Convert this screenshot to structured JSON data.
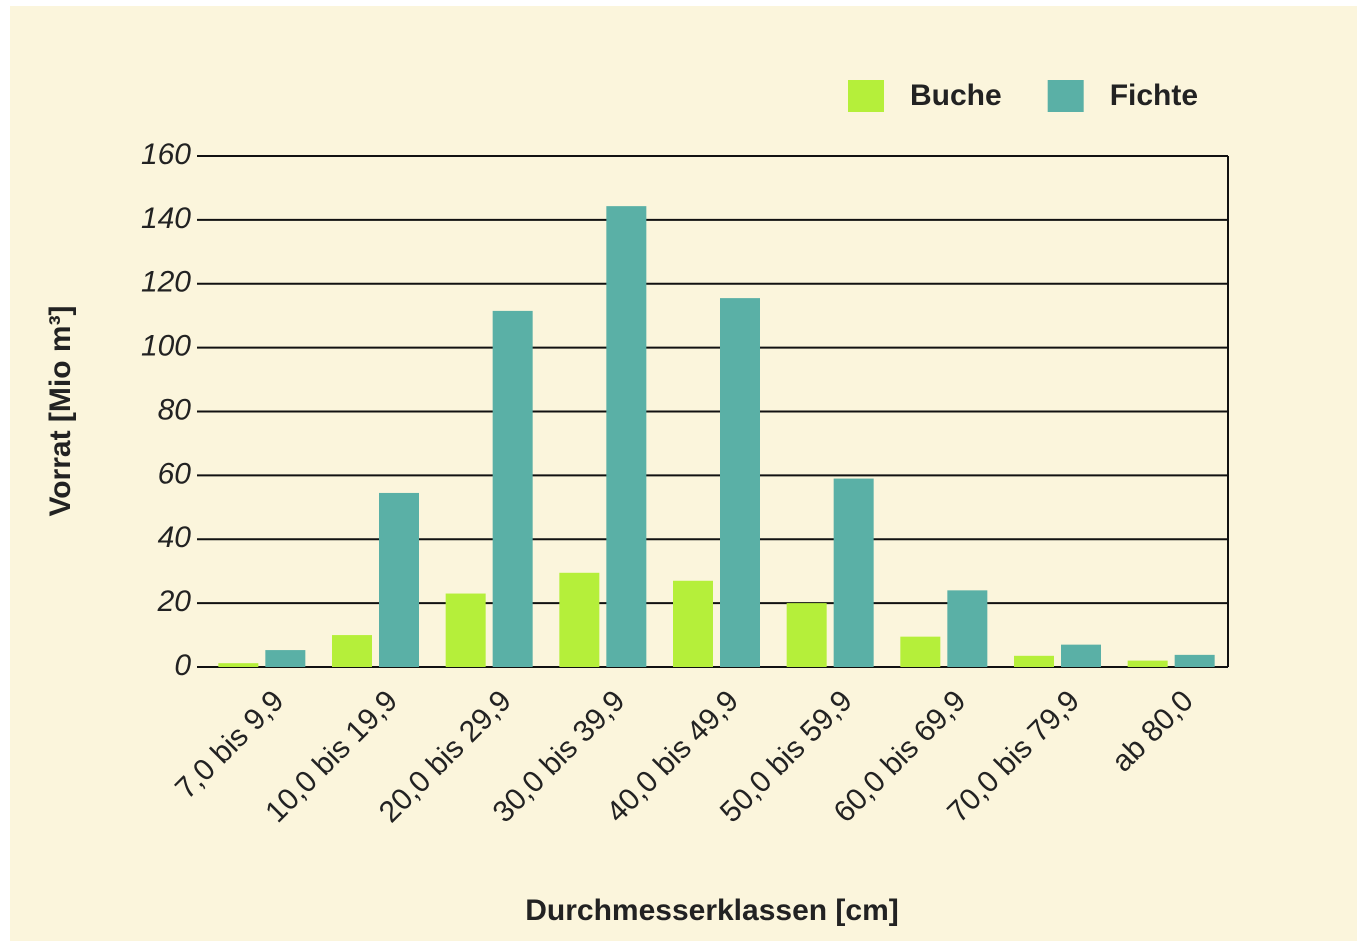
{
  "chart_data": {
    "type": "bar",
    "categories": [
      "7,0 bis 9,9",
      "10,0 bis 19,9",
      "20,0 bis 29,9",
      "30,0 bis 39,9",
      "40,0 bis 49,9",
      "50,0 bis 59,9",
      "60,0 bis 69,9",
      "70,0 bis 79,9",
      "ab 80,0"
    ],
    "series": [
      {
        "name": "Buche",
        "color": "#b5ef3a",
        "values": [
          1.2,
          10,
          23,
          29.5,
          27,
          20,
          9.5,
          3.5,
          2
        ]
      },
      {
        "name": "Fichte",
        "color": "#5ab0a6",
        "values": [
          5.3,
          54.5,
          111.5,
          144.3,
          115.5,
          59,
          24,
          7,
          3.8
        ]
      }
    ],
    "ylabel": "Vorrat [Mio m³]",
    "xlabel": "Durchmesserklassen [cm]",
    "ylim": [
      0,
      160
    ],
    "yticks": [
      0,
      20,
      40,
      60,
      80,
      100,
      120,
      140,
      160
    ],
    "grid": true,
    "legend": "top-right"
  }
}
